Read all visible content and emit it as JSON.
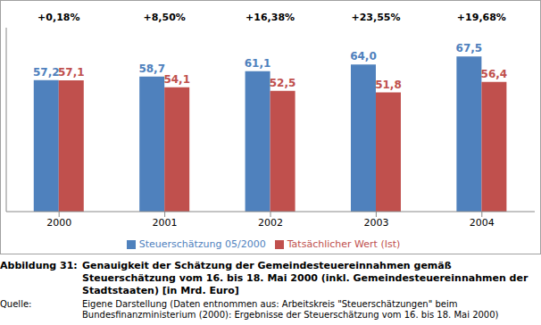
{
  "chart_data": {
    "type": "bar",
    "categories": [
      "2000",
      "2001",
      "2002",
      "2003",
      "2004"
    ],
    "series": [
      {
        "name": "Steuerschätzung 05/2000",
        "color": "#4f81bd",
        "values": [
          57.2,
          58.7,
          61.1,
          64.0,
          67.5
        ],
        "value_labels": [
          "57,2",
          "58,7",
          "61,1",
          "64,0",
          "67,5"
        ]
      },
      {
        "name": "Tatsächlicher Wert (Ist)",
        "color": "#c0504d",
        "values": [
          57.1,
          54.1,
          52.5,
          51.8,
          56.4
        ],
        "value_labels": [
          "57,1",
          "54,1",
          "52,5",
          "51,8",
          "56,4"
        ]
      }
    ],
    "annotations": [
      "+0,18%",
      "+8,50%",
      "+16,38%",
      "+23,55%",
      "+19,68%"
    ],
    "ylim": [
      0,
      80
    ],
    "tick_labels": "x",
    "data_labels": true,
    "legend": "bottom",
    "grid": false
  },
  "caption": {
    "label": "Abbildung 31:",
    "text": "Genauigkeit der Schätzung der Gemeindesteuereinnahmen gemäß Steuerschätzung vom 16. bis 18. Mai 2000 (inkl. Gemeindesteuereinnahmen der Stadtstaaten) [in Mrd. Euro]"
  },
  "source": {
    "label": "Quelle:",
    "text": "Eigene Darstellung (Daten entnommen aus: Arbeitskreis \"Steuerschätzungen\" beim Bundesfinanzministerium (2000): Ergebnisse der Steuerschätzung vom 16. bis 18. Mai 2000)"
  }
}
